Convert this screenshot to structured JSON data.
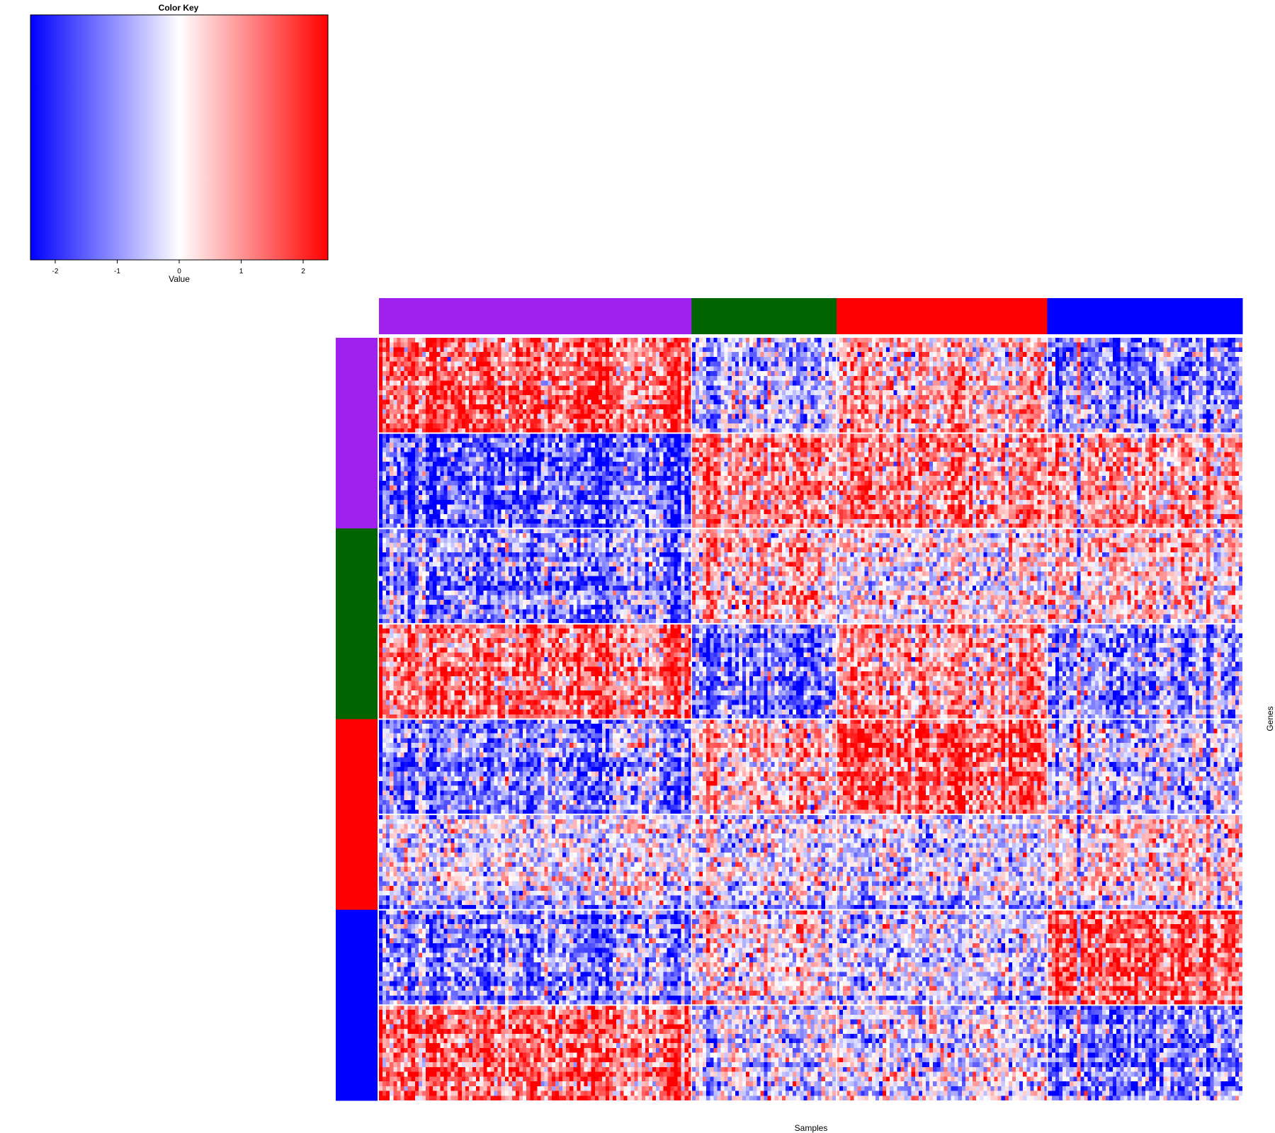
{
  "chart_data": [
    {
      "type": "colorbar",
      "title": "Color Key",
      "xlabel": "Value",
      "range": [
        -2.4,
        2.4
      ],
      "ticks": [
        -2,
        -1,
        0,
        1,
        2
      ],
      "colormap": {
        "low": "#0000ff",
        "mid": "#ffffff",
        "high": "#ff0000"
      }
    },
    {
      "type": "heatmap",
      "title": "",
      "xlabel": "Samples",
      "ylabel": "Genes",
      "n_rows": 160,
      "n_cols": 240,
      "value_range": [
        -2.4,
        2.4
      ],
      "column_groups": [
        {
          "color": "#a020f0",
          "fraction": 0.362
        },
        {
          "color": "#006400",
          "fraction": 0.168
        },
        {
          "color": "#ff0000",
          "fraction": 0.244
        },
        {
          "color": "#0000ff",
          "fraction": 0.226
        }
      ],
      "row_groups": [
        {
          "color": "#a020f0",
          "fraction": 0.25
        },
        {
          "color": "#006400",
          "fraction": 0.25
        },
        {
          "color": "#ff0000",
          "fraction": 0.25
        },
        {
          "color": "#0000ff",
          "fraction": 0.25
        }
      ],
      "row_blocks": [
        {
          "fraction": 0.125,
          "group_means": [
            1.4,
            -0.9,
            0.6,
            -1.2
          ]
        },
        {
          "fraction": 0.125,
          "group_means": [
            -1.5,
            1.3,
            1.1,
            0.9
          ]
        },
        {
          "fraction": 0.125,
          "group_means": [
            -1.0,
            0.8,
            0.1,
            0.5
          ]
        },
        {
          "fraction": 0.125,
          "group_means": [
            1.3,
            -1.4,
            0.9,
            -0.9
          ]
        },
        {
          "fraction": 0.125,
          "group_means": [
            -1.2,
            0.7,
            1.5,
            -0.6
          ]
        },
        {
          "fraction": 0.125,
          "group_means": [
            -0.1,
            0.0,
            -0.3,
            0.4
          ]
        },
        {
          "fraction": 0.125,
          "group_means": [
            -1.0,
            0.4,
            -0.3,
            1.6
          ]
        },
        {
          "fraction": 0.125,
          "group_means": [
            1.3,
            -0.6,
            -0.3,
            -1.3
          ]
        }
      ],
      "row_separators_after_block": [
        0,
        1,
        2,
        3,
        4,
        5,
        6
      ],
      "noise": 0.9
    }
  ]
}
